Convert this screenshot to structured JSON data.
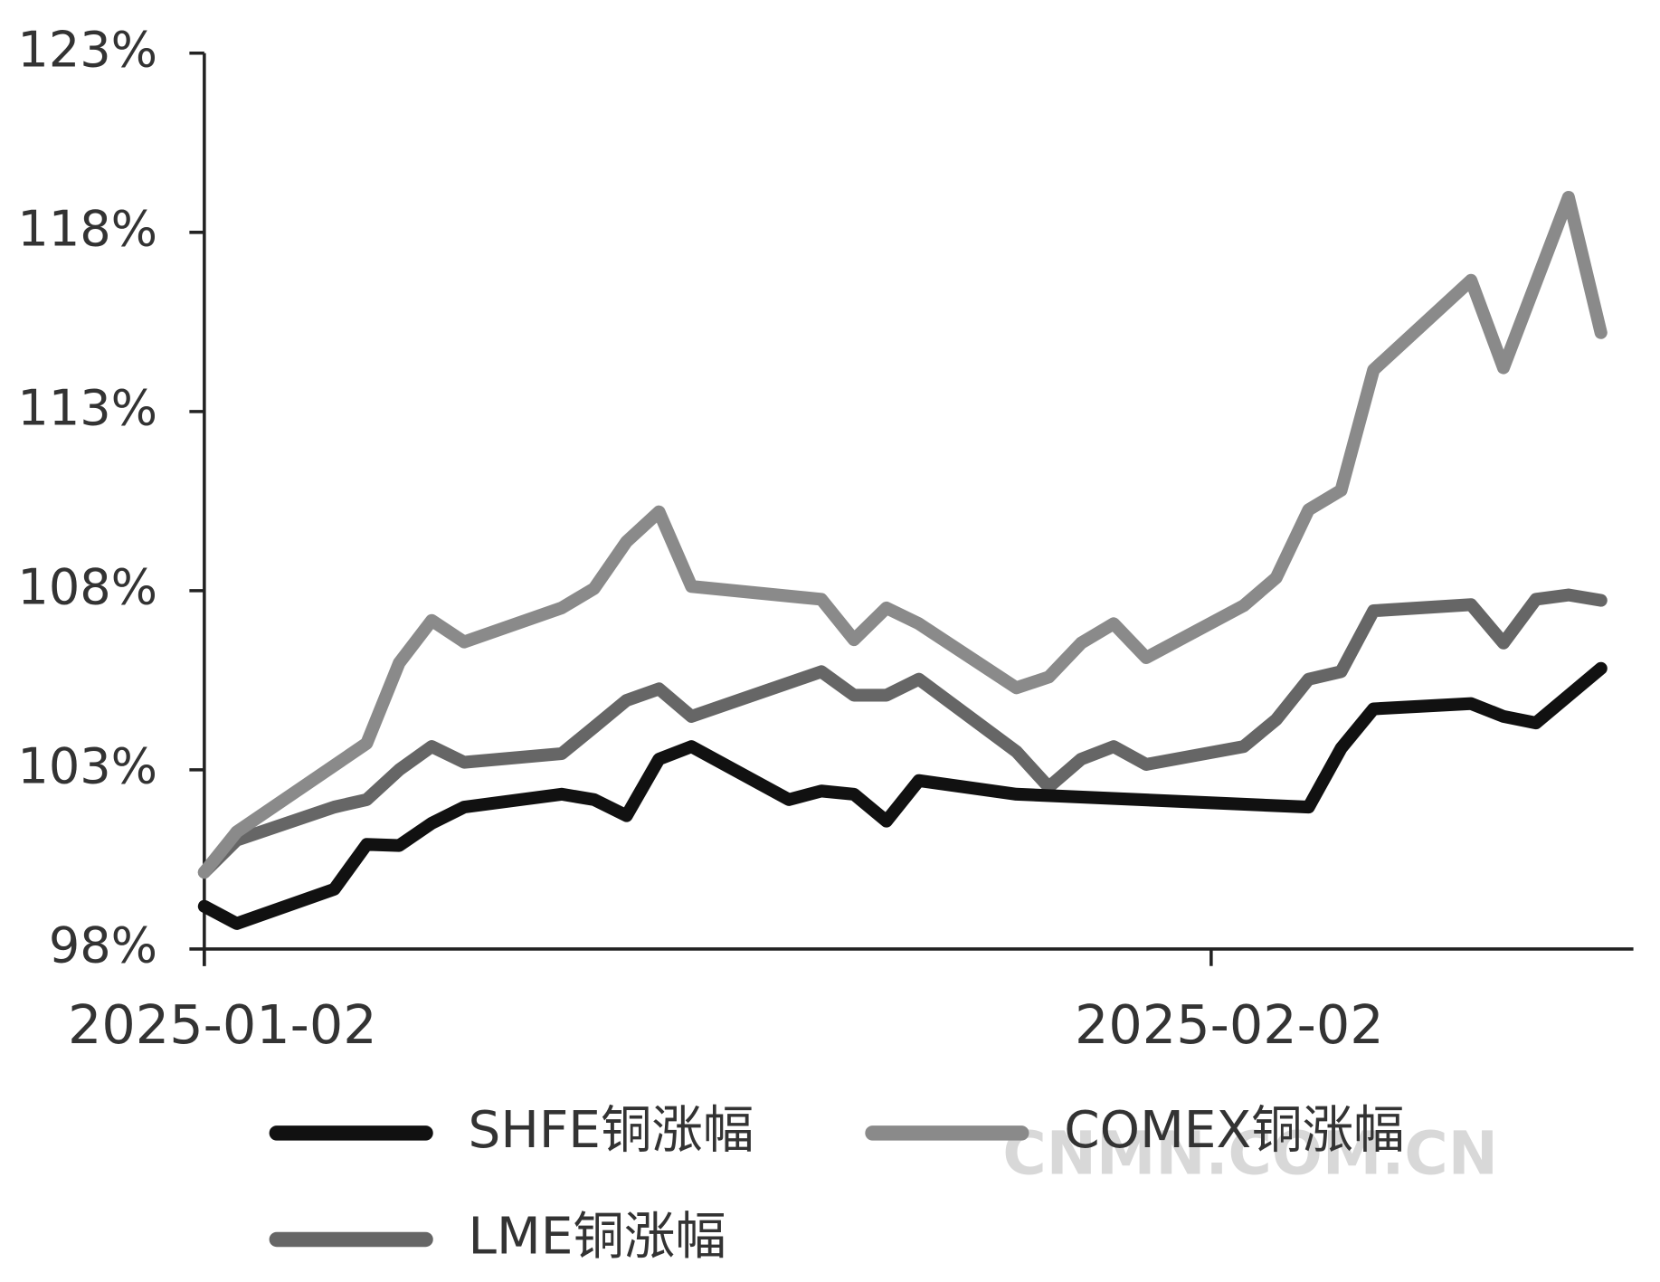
{
  "chart_data": {
    "type": "line",
    "xlim": [
      "2025-01-02",
      "2025-02-15"
    ],
    "xticks": [
      "2025-01-02",
      "2025-02-02"
    ],
    "ylim": [
      98,
      123
    ],
    "yticks": [
      {
        "value": 98,
        "label": "98%"
      },
      {
        "value": 103,
        "label": "103%"
      },
      {
        "value": 108,
        "label": "108%"
      },
      {
        "value": 113,
        "label": "113%"
      },
      {
        "value": 118,
        "label": "118%"
      },
      {
        "value": 123,
        "label": "123%"
      }
    ],
    "legend": "bottom",
    "watermark": "CNMN.COM.CN",
    "series": [
      {
        "name": "SHFE铜涨幅",
        "color": "#111111",
        "x": [
          "2025-01-02",
          "2025-01-03",
          "2025-01-06",
          "2025-01-07",
          "2025-01-08",
          "2025-01-09",
          "2025-01-10",
          "2025-01-13",
          "2025-01-14",
          "2025-01-15",
          "2025-01-16",
          "2025-01-17",
          "2025-01-20",
          "2025-01-21",
          "2025-01-22",
          "2025-01-23",
          "2025-01-24",
          "2025-01-27",
          "2025-02-05",
          "2025-02-06",
          "2025-02-07",
          "2025-02-10",
          "2025-02-11",
          "2025-02-12",
          "2025-02-14"
        ],
        "values": [
          99.19,
          98.71,
          99.67,
          100.92,
          100.89,
          101.51,
          101.96,
          102.32,
          102.17,
          101.72,
          103.3,
          103.65,
          102.17,
          102.41,
          102.32,
          101.57,
          102.7,
          102.32,
          101.96,
          103.6,
          104.7,
          104.85,
          104.49,
          104.31,
          105.83
        ]
      },
      {
        "name": "COMEX铜涨幅",
        "color": "#8a8a8a",
        "x": [
          "2025-01-02",
          "2025-01-03",
          "2025-01-07",
          "2025-01-08",
          "2025-01-09",
          "2025-01-10",
          "2025-01-13",
          "2025-01-14",
          "2025-01-15",
          "2025-01-16",
          "2025-01-17",
          "2025-01-21",
          "2025-01-22",
          "2025-01-23",
          "2025-01-24",
          "2025-01-27",
          "2025-01-28",
          "2025-01-29",
          "2025-01-30",
          "2025-01-31",
          "2025-02-03",
          "2025-02-04",
          "2025-02-05",
          "2025-02-06",
          "2025-02-07",
          "2025-02-10",
          "2025-02-11",
          "2025-02-13",
          "2025-02-14"
        ],
        "values": [
          100.14,
          101.27,
          103.74,
          105.98,
          107.17,
          106.57,
          107.52,
          108.06,
          109.37,
          110.2,
          108.12,
          107.76,
          106.63,
          107.52,
          107.08,
          105.29,
          105.59,
          106.54,
          107.08,
          106.13,
          107.58,
          108.36,
          110.26,
          110.8,
          114.16,
          116.66,
          114.22,
          118.98,
          115.2
        ]
      },
      {
        "name": "LME铜涨幅",
        "color": "#666666",
        "x": [
          "2025-01-02",
          "2025-01-03",
          "2025-01-06",
          "2025-01-07",
          "2025-01-08",
          "2025-01-09",
          "2025-01-10",
          "2025-01-13",
          "2025-01-14",
          "2025-01-15",
          "2025-01-16",
          "2025-01-17",
          "2025-01-21",
          "2025-01-22",
          "2025-01-23",
          "2025-01-24",
          "2025-01-27",
          "2025-01-28",
          "2025-01-29",
          "2025-01-30",
          "2025-01-31",
          "2025-02-03",
          "2025-02-04",
          "2025-02-05",
          "2025-02-06",
          "2025-02-07",
          "2025-02-10",
          "2025-02-11",
          "2025-02-12",
          "2025-02-13",
          "2025-02-14"
        ],
        "values": [
          100.14,
          101.04,
          101.96,
          102.17,
          103.0,
          103.65,
          103.21,
          103.45,
          104.19,
          104.94,
          105.26,
          104.49,
          105.74,
          105.08,
          105.08,
          105.53,
          103.51,
          102.52,
          103.3,
          103.65,
          103.15,
          103.65,
          104.4,
          105.53,
          105.74,
          107.44,
          107.61,
          106.54,
          107.76,
          107.88,
          107.73
        ]
      }
    ]
  }
}
